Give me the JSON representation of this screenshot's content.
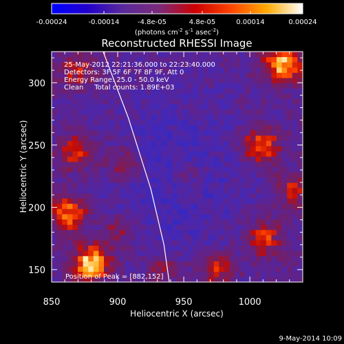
{
  "chart_data": {
    "type": "heatmap",
    "title": "Reconstructed RHESSI Image",
    "xlabel": "Heliocentric X (arcsec)",
    "ylabel": "Heliocentric Y (arcsec)",
    "xlim": [
      850,
      1040
    ],
    "ylim": [
      140,
      325
    ],
    "x_ticks": [
      850,
      900,
      950,
      1000
    ],
    "y_ticks": [
      150,
      200,
      250,
      300
    ],
    "annotations": [
      "25-May-2012 22:21:36.000 to 22:23:40.000",
      "Detectors: 3F 5F 6F 7F 8F 9F, Att 0",
      "Energy Range: 25.0 - 50.0 keV",
      "Clean     Total counts: 1.89E+03",
      "Position of Peak = [882,152]"
    ],
    "peak": {
      "x": 882,
      "y": 152
    },
    "colorbar": {
      "range": [
        -0.00024,
        0.00024
      ],
      "tick_labels": [
        "-0.00024",
        "-0.00014",
        "-4.8e-05",
        "4.8e-05",
        "0.00014",
        "0.00024"
      ],
      "unit_prefix": "(photons cm",
      "unit_mid": " s",
      "unit_end": " asec",
      "unit_close": ")",
      "sup_1": "-2",
      "sup_2": "-1",
      "sup_3": "-2",
      "colors": [
        "#0000ff",
        "#2200cc",
        "#5a2a9a",
        "#7a2a7a",
        "#cc0000",
        "#ff4400",
        "#ffaa00",
        "#ffffff"
      ]
    },
    "features": [
      {
        "x": 880,
        "y": 155,
        "level": 1.0
      },
      {
        "x": 862,
        "y": 195,
        "level": 0.75
      },
      {
        "x": 868,
        "y": 245,
        "level": 0.55
      },
      {
        "x": 905,
        "y": 235,
        "level": 0.45
      },
      {
        "x": 1025,
        "y": 315,
        "level": 0.9
      },
      {
        "x": 1008,
        "y": 250,
        "level": 0.75
      },
      {
        "x": 1010,
        "y": 175,
        "level": 0.6
      },
      {
        "x": 975,
        "y": 150,
        "level": 0.55
      },
      {
        "x": 870,
        "y": 310,
        "level": 0.45
      },
      {
        "x": 1035,
        "y": 215,
        "level": 0.5
      },
      {
        "x": 900,
        "y": 182,
        "level": 0.35
      },
      {
        "x": 955,
        "y": 225,
        "level": 0.3
      },
      {
        "x": 935,
        "y": 150,
        "level": 0.35
      }
    ],
    "limb": [
      [
        889,
        325
      ],
      [
        908,
        272
      ],
      [
        925,
        215
      ],
      [
        935,
        170
      ],
      [
        939,
        140
      ]
    ]
  },
  "footer": {
    "timestamp": "9-May-2014 10:09"
  }
}
